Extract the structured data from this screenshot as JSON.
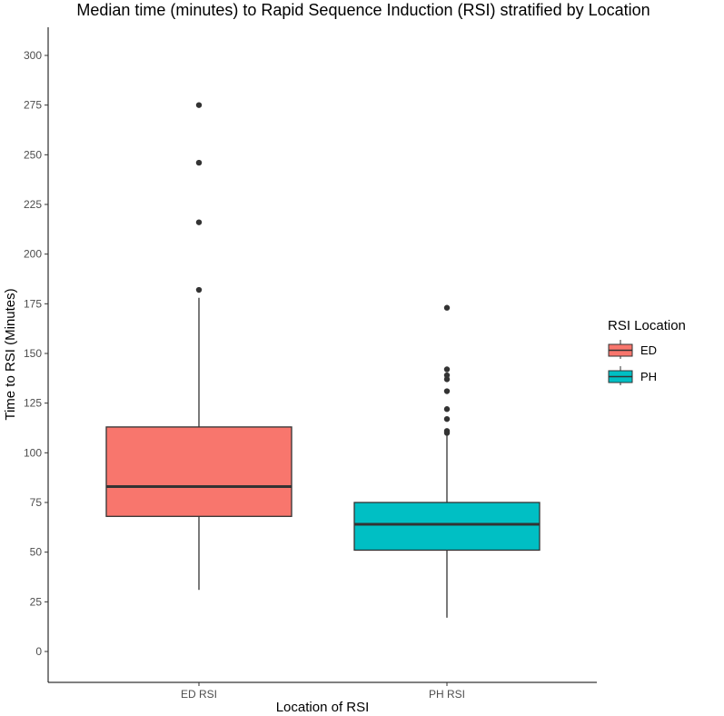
{
  "chart_data": {
    "type": "box",
    "title": "Median time (minutes) to Rapid Sequence Induction (RSI) stratified by Location",
    "xlabel": "Location of RSI",
    "ylabel": "Time to RSI (Minutes)",
    "ylim": [
      -15,
      315
    ],
    "yticks": [
      0,
      25,
      50,
      75,
      100,
      125,
      150,
      175,
      200,
      225,
      250,
      275,
      300
    ],
    "categories": [
      "ED RSI",
      "PH RSI"
    ],
    "grid": false,
    "legend": {
      "title": "RSI Location",
      "position": "right",
      "entries": [
        {
          "label": "ED",
          "color": "#F8766D"
        },
        {
          "label": "PH",
          "color": "#00BFC4"
        }
      ]
    },
    "boxes": [
      {
        "category": "ED RSI",
        "group": "ED",
        "color": "#F8766D",
        "whisker_low": 31,
        "q1": 68,
        "median": 83,
        "q3": 113,
        "whisker_high": 178,
        "outliers": [
          182,
          216,
          246,
          275
        ]
      },
      {
        "category": "PH RSI",
        "group": "PH",
        "color": "#00BFC4",
        "whisker_low": 17,
        "q1": 51,
        "median": 64,
        "q3": 75,
        "whisker_high": 109,
        "outliers": [
          110,
          111,
          117,
          122,
          131,
          137,
          139,
          142,
          173
        ]
      }
    ]
  }
}
